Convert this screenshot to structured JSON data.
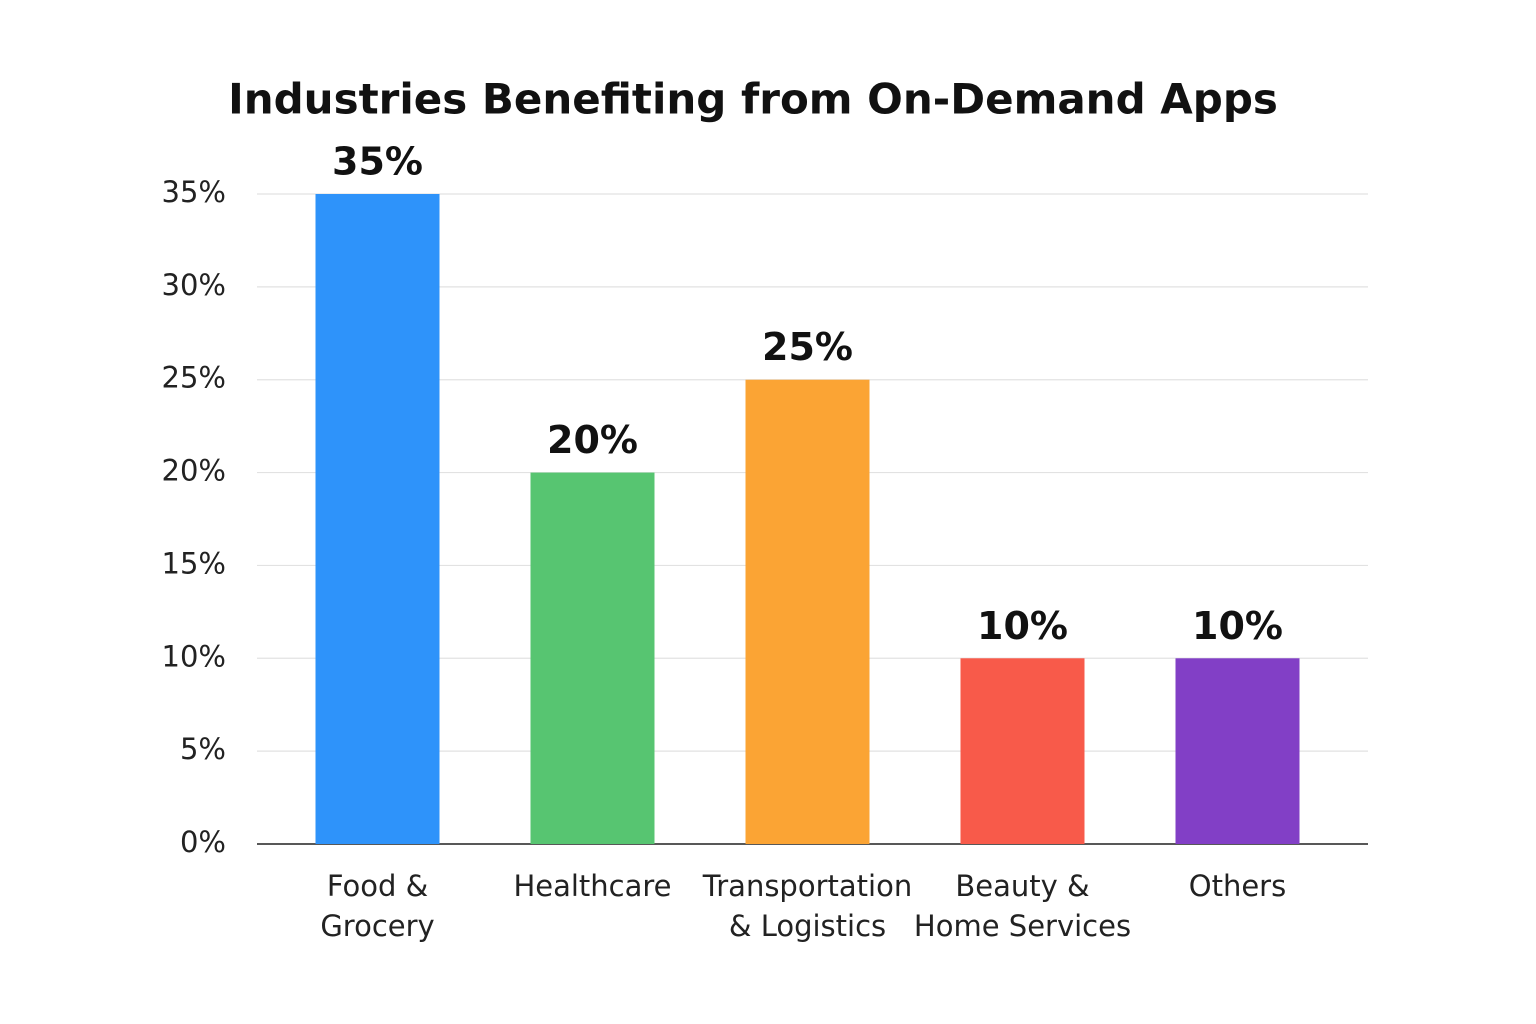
{
  "chart_data": {
    "type": "bar",
    "title": "Industries Benefiting from On-Demand Apps",
    "categories": [
      "Food &\nGrocery",
      "Healthcare",
      "Transportation\n& Logistics",
      "Beauty &\nHome Services",
      "Others"
    ],
    "values": [
      35,
      20,
      25,
      10,
      10
    ],
    "value_labels": [
      "35%",
      "20%",
      "25%",
      "10%",
      "10%"
    ],
    "colors": [
      "#2e93fa",
      "#57c571",
      "#fba434",
      "#f85a4a",
      "#823fc6"
    ],
    "ylim": [
      0,
      35
    ],
    "yticks": [
      {
        "value": 0,
        "label": "0%"
      },
      {
        "value": 5,
        "label": "5%"
      },
      {
        "value": 10,
        "label": "10%"
      },
      {
        "value": 15,
        "label": "15%"
      },
      {
        "value": 20,
        "label": "20%"
      },
      {
        "value": 25,
        "label": "25%"
      },
      {
        "value": 30,
        "label": "30%"
      },
      {
        "value": 35,
        "label": "35%"
      }
    ],
    "grid": true
  }
}
